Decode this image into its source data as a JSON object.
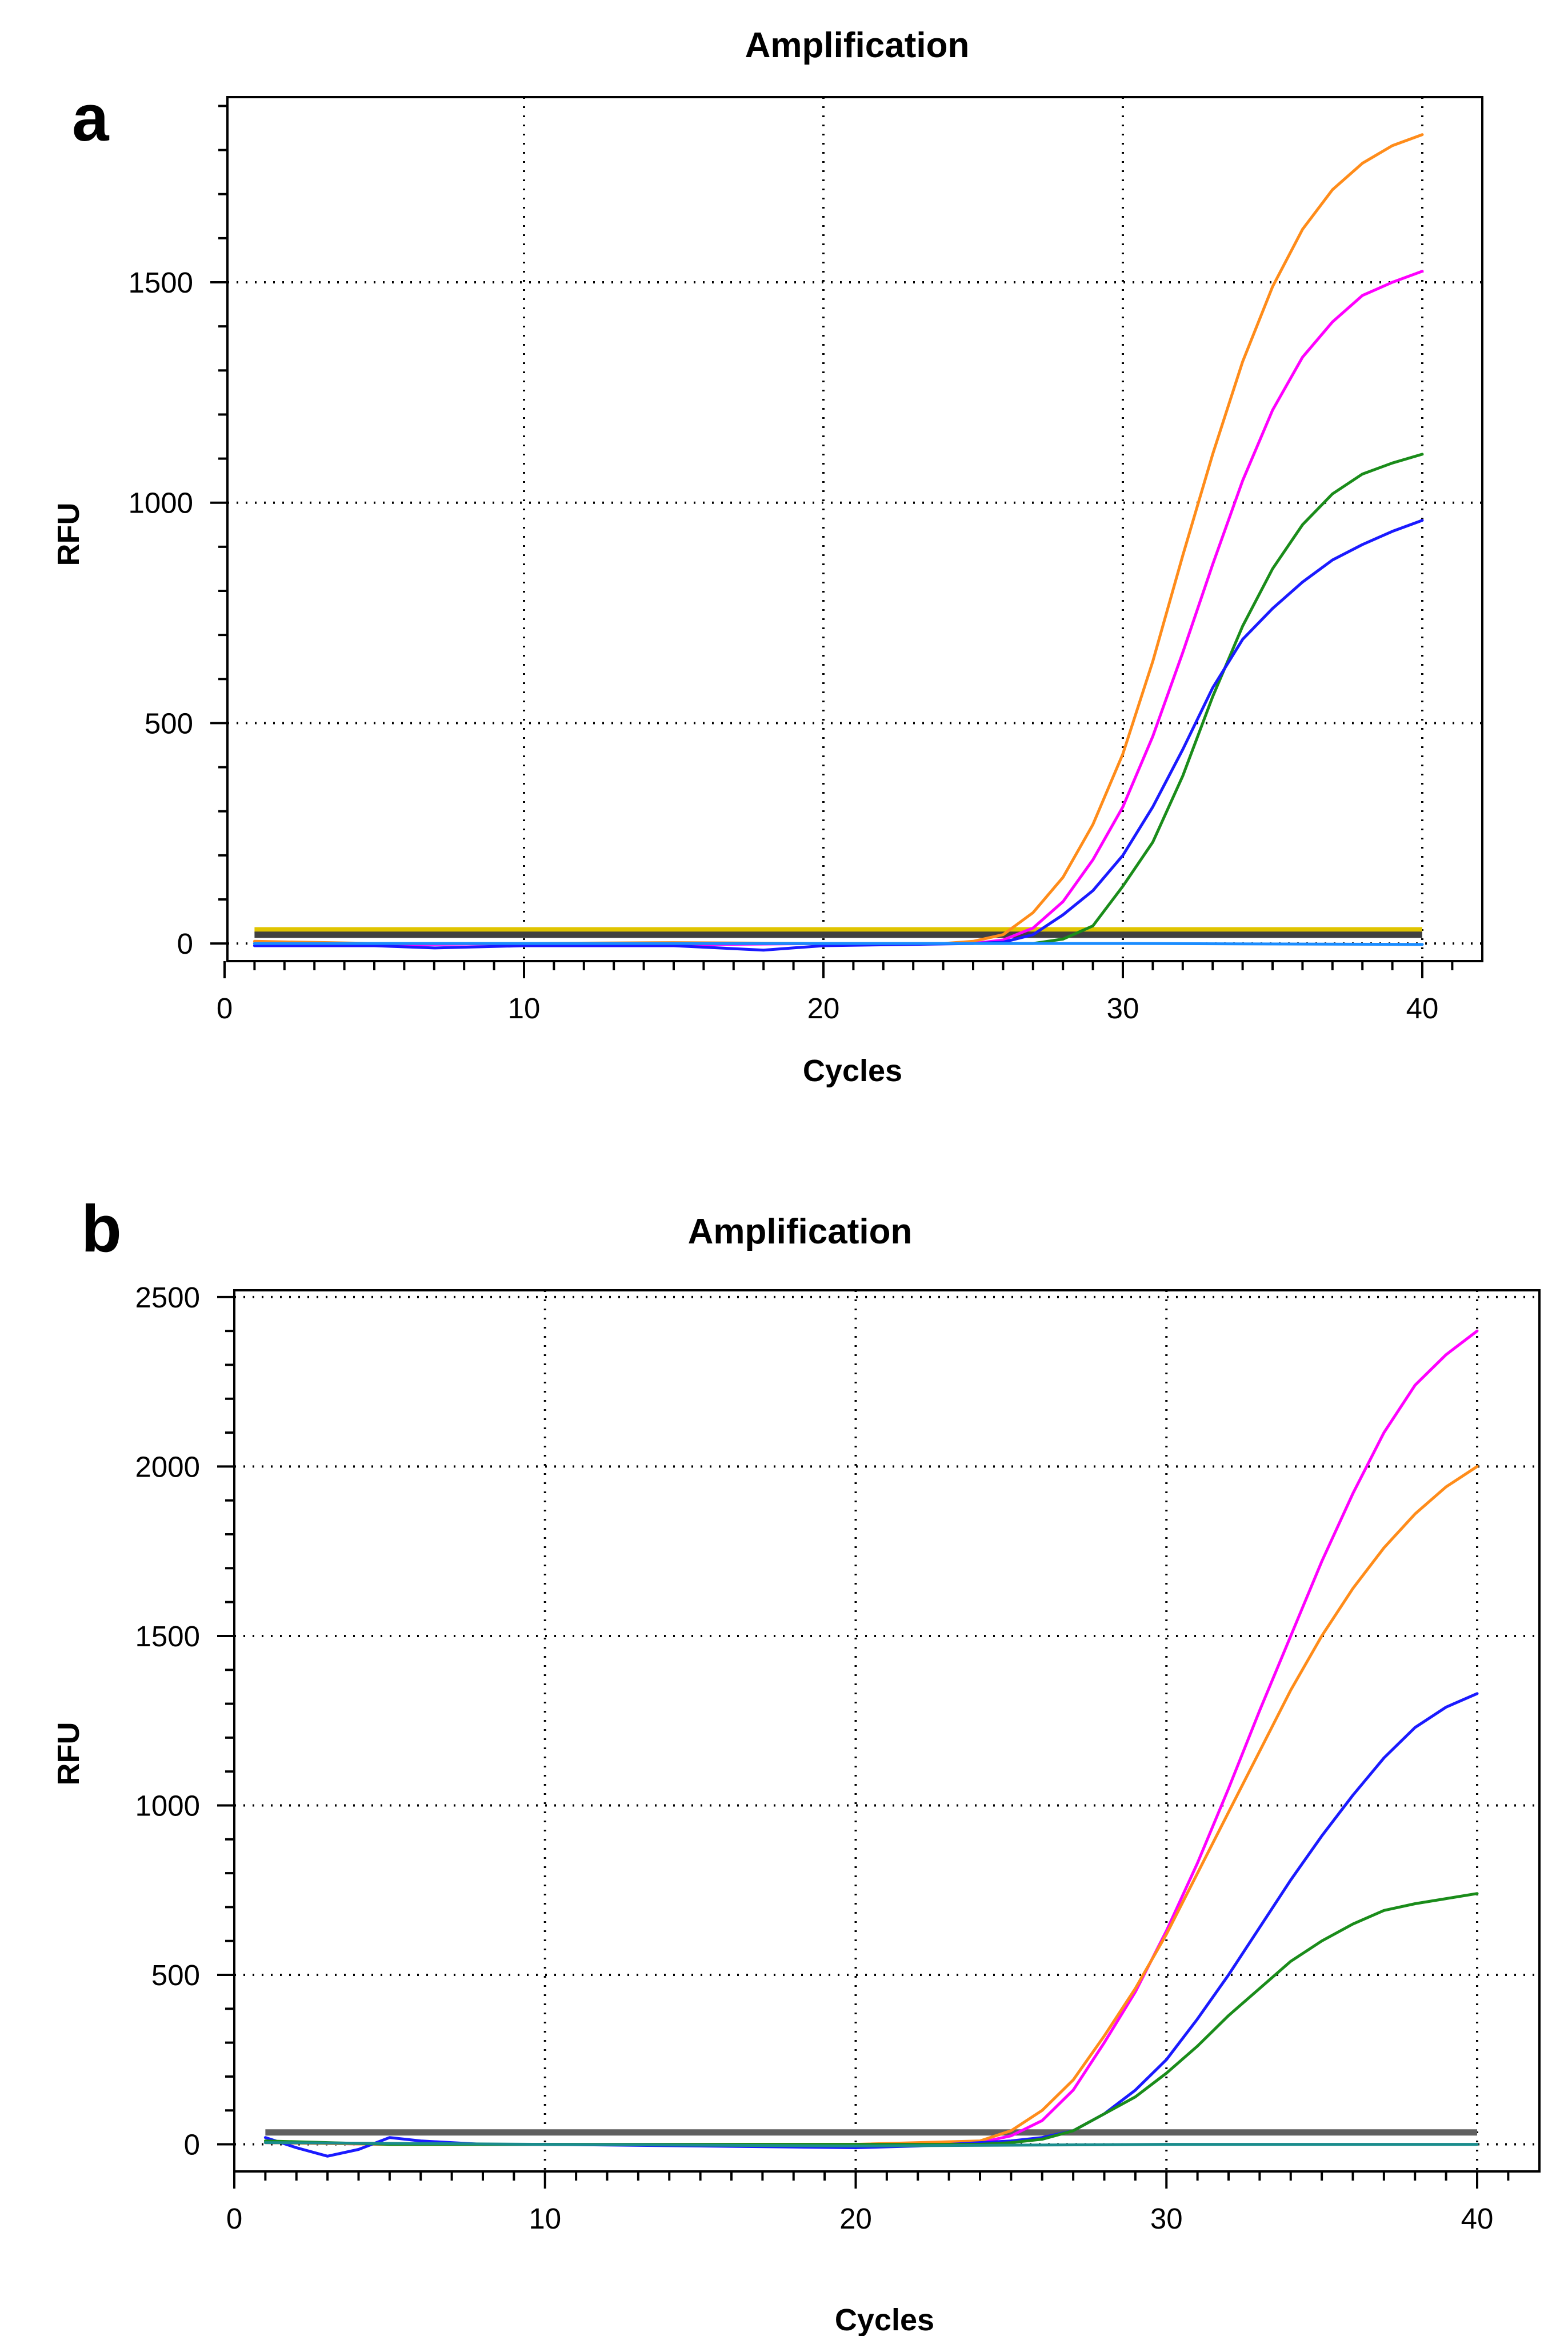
{
  "chart_data": [
    {
      "panel_label": "a",
      "type": "line",
      "title": "Amplification",
      "xlabel": "Cycles",
      "ylabel": "RFU",
      "xlim": [
        0,
        42
      ],
      "ylim": [
        -40,
        1920
      ],
      "xticks": [
        0,
        10,
        20,
        30,
        40
      ],
      "yticks": [
        0,
        500,
        1000,
        1500
      ],
      "grid": true,
      "thresholds": [
        {
          "name": "threshold-yellow",
          "y": 30,
          "color": "#e0c400"
        },
        {
          "name": "threshold-dark",
          "y": 20,
          "color": "#404040"
        }
      ],
      "series": [
        {
          "name": "orange",
          "color": "#ff8c1a",
          "x": [
            1,
            5,
            10,
            15,
            20,
            24,
            25,
            26,
            27,
            28,
            29,
            30,
            31,
            32,
            33,
            34,
            35,
            36,
            37,
            38,
            39,
            40
          ],
          "y": [
            5,
            0,
            0,
            2,
            0,
            0,
            5,
            20,
            70,
            150,
            270,
            430,
            640,
            880,
            1110,
            1320,
            1490,
            1620,
            1710,
            1770,
            1810,
            1835
          ]
        },
        {
          "name": "magenta",
          "color": "#ff00ff",
          "x": [
            1,
            5,
            10,
            15,
            20,
            25,
            26,
            27,
            28,
            29,
            30,
            31,
            32,
            33,
            34,
            35,
            36,
            37,
            38,
            39,
            40
          ],
          "y": [
            0,
            -3,
            0,
            -3,
            0,
            0,
            8,
            35,
            95,
            190,
            310,
            470,
            660,
            860,
            1050,
            1210,
            1330,
            1410,
            1470,
            1500,
            1525
          ]
        },
        {
          "name": "green",
          "color": "#1a8c1a",
          "x": [
            1,
            5,
            10,
            15,
            20,
            27,
            28,
            29,
            30,
            31,
            32,
            33,
            34,
            35,
            36,
            37,
            38,
            39,
            40
          ],
          "y": [
            0,
            0,
            0,
            0,
            0,
            0,
            10,
            40,
            130,
            230,
            380,
            560,
            720,
            850,
            950,
            1020,
            1065,
            1090,
            1110
          ]
        },
        {
          "name": "blue",
          "color": "#1a1aff",
          "x": [
            1,
            5,
            7,
            10,
            15,
            18,
            20,
            25,
            26,
            27,
            28,
            29,
            30,
            31,
            32,
            33,
            34,
            35,
            36,
            37,
            38,
            39,
            40
          ],
          "y": [
            -5,
            -5,
            -10,
            -5,
            -5,
            -15,
            -5,
            0,
            3,
            20,
            65,
            120,
            200,
            310,
            440,
            580,
            690,
            760,
            820,
            870,
            905,
            935,
            960
          ]
        },
        {
          "name": "cyan",
          "color": "#1a8cff",
          "x": [
            1,
            10,
            20,
            30,
            40
          ],
          "y": [
            0,
            0,
            0,
            0,
            -2
          ]
        }
      ]
    },
    {
      "panel_label": "b",
      "type": "line",
      "title": "Amplification",
      "xlabel": "Cycles",
      "ylabel": "RFU",
      "xlim": [
        0,
        42
      ],
      "ylim": [
        -80,
        2520
      ],
      "xticks": [
        0,
        10,
        20,
        30,
        40
      ],
      "yticks": [
        0,
        500,
        1000,
        1500,
        2000,
        2500
      ],
      "grid": true,
      "thresholds": [
        {
          "name": "threshold-gray",
          "y": 35,
          "color": "#606060"
        }
      ],
      "series": [
        {
          "name": "magenta",
          "color": "#ff00ff",
          "x": [
            1,
            5,
            10,
            15,
            20,
            24,
            25,
            26,
            27,
            28,
            29,
            30,
            31,
            32,
            33,
            34,
            35,
            36,
            37,
            38,
            39,
            40
          ],
          "y": [
            5,
            0,
            0,
            -3,
            -5,
            5,
            25,
            70,
            160,
            300,
            450,
            630,
            830,
            1050,
            1280,
            1500,
            1720,
            1920,
            2100,
            2240,
            2330,
            2400
          ]
        },
        {
          "name": "orange",
          "color": "#ff8c1a",
          "x": [
            1,
            5,
            10,
            15,
            20,
            24,
            25,
            26,
            27,
            28,
            29,
            30,
            31,
            32,
            33,
            34,
            35,
            36,
            37,
            38,
            39,
            40
          ],
          "y": [
            5,
            0,
            0,
            0,
            0,
            10,
            40,
            100,
            190,
            320,
            460,
            620,
            800,
            980,
            1160,
            1340,
            1500,
            1640,
            1760,
            1860,
            1940,
            2000
          ]
        },
        {
          "name": "blue",
          "color": "#1a1aff",
          "x": [
            1,
            2,
            3,
            4,
            5,
            6,
            7,
            8,
            10,
            15,
            20,
            22,
            24,
            25,
            26,
            27,
            28,
            29,
            30,
            31,
            32,
            33,
            34,
            35,
            36,
            37,
            38,
            39,
            40
          ],
          "y": [
            20,
            -10,
            -35,
            -15,
            20,
            10,
            5,
            0,
            0,
            -5,
            -10,
            -5,
            5,
            10,
            20,
            40,
            90,
            160,
            250,
            370,
            500,
            640,
            780,
            910,
            1030,
            1140,
            1230,
            1290,
            1330
          ]
        },
        {
          "name": "green",
          "color": "#1a8c1a",
          "x": [
            1,
            5,
            10,
            15,
            20,
            24,
            25,
            26,
            27,
            28,
            29,
            30,
            31,
            32,
            33,
            34,
            35,
            36,
            37,
            38,
            39,
            40
          ],
          "y": [
            10,
            0,
            0,
            0,
            0,
            0,
            5,
            15,
            40,
            90,
            140,
            210,
            290,
            380,
            460,
            540,
            600,
            650,
            690,
            710,
            725,
            740
          ]
        },
        {
          "name": "flat-teal",
          "color": "#1a8c8c",
          "x": [
            1,
            10,
            20,
            30,
            40
          ],
          "y": [
            5,
            0,
            -5,
            0,
            0
          ]
        }
      ]
    }
  ]
}
